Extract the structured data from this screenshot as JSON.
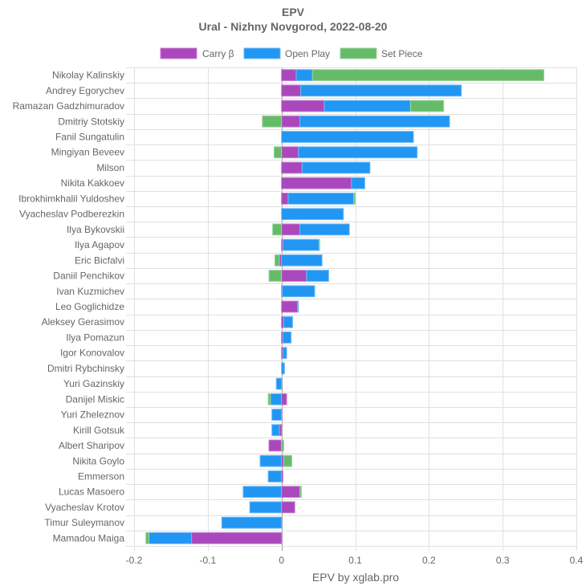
{
  "chart_data": {
    "type": "bar",
    "orientation": "horizontal",
    "stacked": true,
    "title": "EPV",
    "subtitle": "Ural - Nizhny Novgorod, 2022-08-20",
    "xlabel": "EPV by xglab.pro",
    "ylabel": "",
    "xlim": [
      -0.2,
      0.4
    ],
    "xticks": [
      "-0.2",
      "-0.1",
      "0",
      "0.1",
      "0.2",
      "0.3",
      "0.4"
    ],
    "xtick_values": [
      -0.2,
      -0.1,
      0,
      0.1,
      0.2,
      0.3,
      0.4
    ],
    "grid": true,
    "legend_position": "top",
    "categories": [
      "Nikolay Kalinskiy",
      "Andrey Egorychev",
      "Ramazan Gadzhimuradov",
      "Dmitriy Stotskiy",
      "Fanil Sungatulin",
      "Mingiyan Beveev",
      "Milson",
      "Nikita Kakkoev",
      "Ibrokhimkhalil Yuldoshev",
      "Vyacheslav Podberezkin",
      "Ilya Bykovskii",
      "Ilya Agapov",
      "Eric Bicfalvi",
      "Daniil Penchikov",
      "Ivan Kuzmichev",
      "Leo Goglichidze",
      "Aleksey Gerasimov",
      "Ilya Pomazun",
      "Igor Konovalov",
      "Dmitri Rybchinsky",
      "Yuri Gazinskiy",
      "Danijel Miskic",
      "Yuri Zheleznov",
      "Kirill Gotsuk",
      "Albert Sharipov",
      "Nikita Goylo",
      "Emmerson",
      "Lucas Masoero",
      "Vyacheslav Krotov",
      "Timur Suleymanov",
      "Mamadou Maiga"
    ],
    "series": [
      {
        "name": "Carry β",
        "color": "#AB47BC",
        "values": [
          0.02,
          0.026,
          0.058,
          0.025,
          0.0,
          0.023,
          0.028,
          0.095,
          0.009,
          0.0,
          0.025,
          0.002,
          -0.003,
          0.034,
          0.001,
          0.022,
          0.003,
          0.002,
          0.002,
          0.0,
          0.0,
          0.007,
          0.001,
          -0.003,
          -0.017,
          0.003,
          0.002,
          0.025,
          0.018,
          0.0,
          -0.122
        ]
      },
      {
        "name": "Open Play",
        "color": "#2196F3",
        "values": [
          0.022,
          0.218,
          0.117,
          0.203,
          0.179,
          0.161,
          0.092,
          0.018,
          0.089,
          0.084,
          0.067,
          0.049,
          0.055,
          0.03,
          0.044,
          0.001,
          0.012,
          0.011,
          0.005,
          0.004,
          -0.007,
          -0.015,
          -0.013,
          -0.01,
          0.0,
          -0.029,
          -0.018,
          -0.052,
          -0.043,
          -0.081,
          -0.058
        ]
      },
      {
        "name": "Set Piece",
        "color": "#66BB6A",
        "values": [
          0.314,
          0.0,
          0.045,
          -0.026,
          0.0,
          -0.01,
          0.0,
          0.0,
          0.002,
          0.0,
          -0.012,
          0.001,
          -0.006,
          -0.017,
          0.0,
          0.0,
          0.0,
          0.0,
          0.0,
          0.0,
          0.0,
          -0.003,
          0.0,
          0.0,
          0.003,
          0.011,
          0.0,
          0.002,
          0.0,
          0.0,
          -0.004
        ]
      }
    ]
  }
}
